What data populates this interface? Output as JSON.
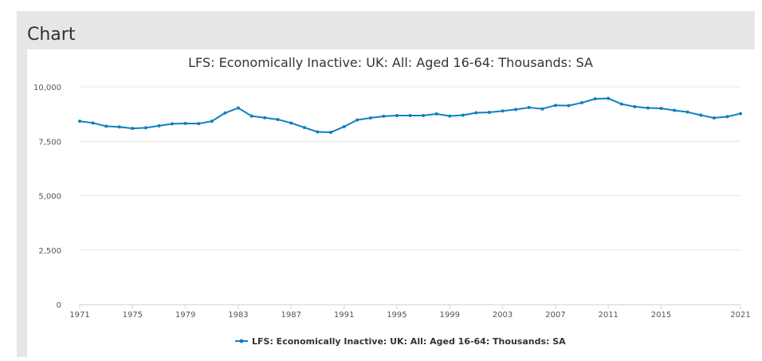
{
  "section_heading": "Chart",
  "colors": {
    "series": "#0f80c1",
    "grid": "#e6e6e6",
    "axis": "#ccd6eb",
    "panel": "#e6e6e6"
  },
  "chart_data": {
    "type": "line",
    "title": "LFS: Economically Inactive: UK: All: Aged 16-64: Thousands: SA",
    "xlabel": "",
    "ylabel": "",
    "ylim": [
      0,
      10000
    ],
    "xlim": [
      1971,
      2021
    ],
    "y_ticks": [
      0,
      2500,
      5000,
      7500,
      10000
    ],
    "y_tick_labels": [
      "0",
      "2,500",
      "5,000",
      "7,500",
      "10,000"
    ],
    "x_ticks": [
      1971,
      1975,
      1979,
      1983,
      1987,
      1991,
      1995,
      1999,
      2003,
      2007,
      2011,
      2015,
      2021
    ],
    "x_tick_labels": [
      "1971",
      "1975",
      "1979",
      "1983",
      "1987",
      "1991",
      "1995",
      "1999",
      "2003",
      "2007",
      "2011",
      "2015",
      "2021"
    ],
    "grid": true,
    "legend_position": "bottom-center",
    "series": [
      {
        "name": "LFS: Economically Inactive: UK: All: Aged 16-64: Thousands: SA",
        "x": [
          1971,
          1972,
          1973,
          1974,
          1975,
          1976,
          1977,
          1978,
          1979,
          1980,
          1981,
          1982,
          1983,
          1984,
          1985,
          1986,
          1987,
          1988,
          1989,
          1990,
          1991,
          1992,
          1993,
          1994,
          1995,
          1996,
          1997,
          1998,
          1999,
          2000,
          2001,
          2002,
          2003,
          2004,
          2005,
          2006,
          2007,
          2008,
          2009,
          2010,
          2011,
          2012,
          2013,
          2014,
          2015,
          2016,
          2017,
          2018,
          2019,
          2020,
          2021
        ],
        "values": [
          8420,
          8340,
          8190,
          8160,
          8090,
          8120,
          8210,
          8300,
          8320,
          8310,
          8420,
          8800,
          9030,
          8660,
          8580,
          8500,
          8340,
          8130,
          7930,
          7910,
          8170,
          8480,
          8570,
          8650,
          8680,
          8680,
          8680,
          8760,
          8660,
          8700,
          8810,
          8830,
          8890,
          8960,
          9050,
          8990,
          9150,
          9140,
          9270,
          9450,
          9470,
          9210,
          9090,
          9030,
          9010,
          8920,
          8840,
          8700,
          8570,
          8630,
          8770
        ]
      }
    ]
  }
}
